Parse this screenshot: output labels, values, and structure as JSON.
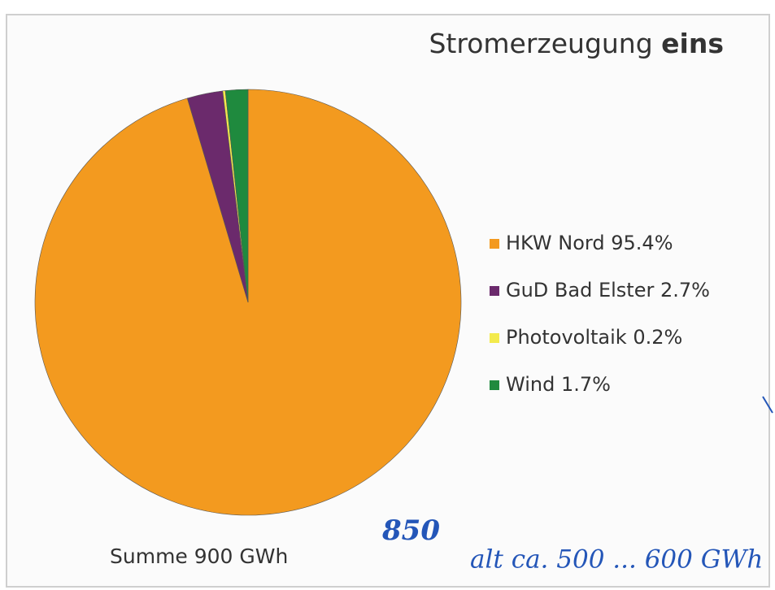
{
  "chart_data": {
    "type": "pie",
    "title": [
      "Stromerzeugung",
      "eins"
    ],
    "categories": [
      "HKW Nord",
      "GuD Bad Elster",
      "Photovoltaik",
      "Wind"
    ],
    "values": [
      95.4,
      2.7,
      0.2,
      1.7
    ],
    "value_labels": [
      "95.4%",
      "2.7%",
      "0.2%",
      "1.7%"
    ],
    "colors": [
      "#f39a1f",
      "#6b2a6c",
      "#f3ea4c",
      "#1f8a3e"
    ],
    "annotations": [
      "Summe 900 GWh",
      "850",
      "alt ca. 500 ... 600 GWh"
    ]
  }
}
